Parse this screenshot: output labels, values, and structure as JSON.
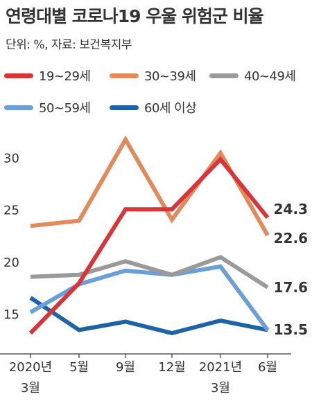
{
  "title": "연령대별 코로나19 우울 위험군 비율",
  "subtitle": "단위: %, 자료: 보건복지부",
  "chart_data": {
    "type": "line",
    "title": "연령대별 코로나19 우울 위험군 비율",
    "unit": "%",
    "source": "보건복지부",
    "x": [
      "2020년 3월",
      "5월",
      "9월",
      "12월",
      "2021년 3월",
      "6월"
    ],
    "x_tick_lines": [
      [
        "2020년",
        "3월"
      ],
      [
        "5월"
      ],
      [
        "9월"
      ],
      [
        "12월"
      ],
      [
        "2021년",
        "3월"
      ],
      [
        "6월"
      ]
    ],
    "yticks": [
      15,
      20,
      25,
      30
    ],
    "ylim": [
      12.2,
      32.3
    ],
    "grid": false,
    "legend": "top",
    "series": [
      {
        "name": "19~29세",
        "color": "#d9343a",
        "values": [
          13.2,
          18.0,
          25.1,
          25.1,
          29.9,
          24.3
        ],
        "end_label": "24.3"
      },
      {
        "name": "30~39세",
        "color": "#e28a5c",
        "values": [
          23.5,
          24.0,
          31.8,
          24.1,
          30.5,
          22.6
        ],
        "end_label": "22.6"
      },
      {
        "name": "40~49세",
        "color": "#9a9a9a",
        "values": [
          18.6,
          18.8,
          20.1,
          18.8,
          20.5,
          17.6
        ],
        "end_label": "17.6"
      },
      {
        "name": "50~59세",
        "color": "#6b9fd8",
        "values": [
          15.2,
          17.9,
          19.2,
          18.8,
          19.6,
          13.5
        ],
        "end_label": "13.5"
      },
      {
        "name": "60세 이상",
        "color": "#1c63a8",
        "values": [
          16.6,
          13.5,
          14.3,
          13.2,
          14.4,
          13.5
        ],
        "end_label": ""
      }
    ]
  }
}
